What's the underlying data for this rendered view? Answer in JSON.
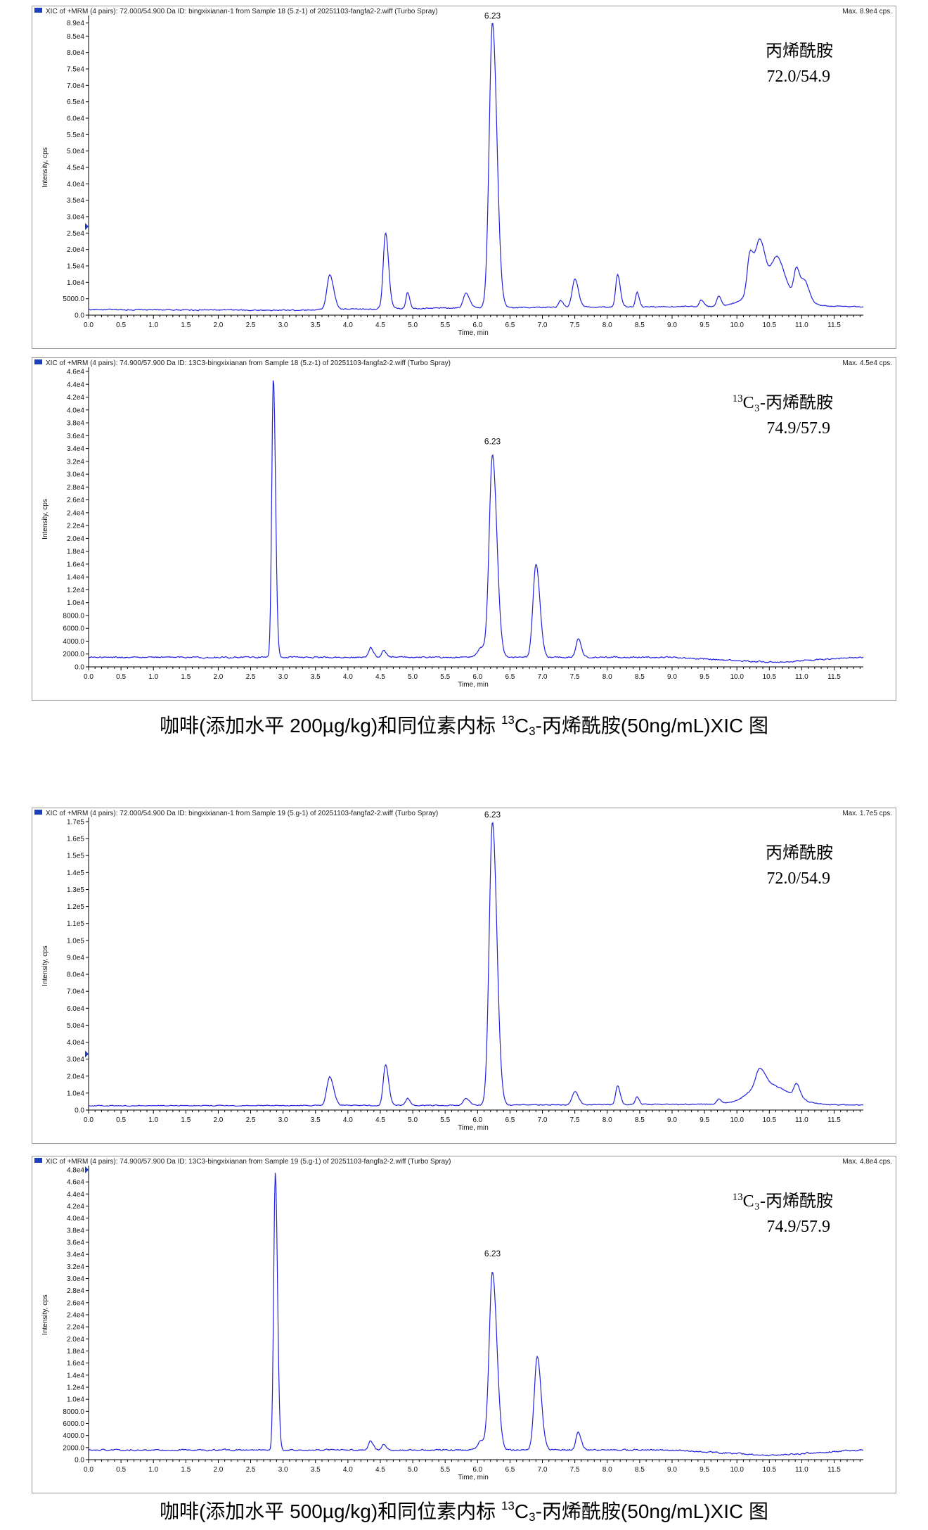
{
  "captions": [
    {
      "pre": "咖啡(添加水平 200µg/kg)和同位素内标 ",
      "sup": "13",
      "mid": "C",
      "sub": "3",
      "post": "-丙烯酰胺(50ng/mL)XIC 图"
    },
    {
      "pre": "咖啡(添加水平 500µg/kg)和同位素内标 ",
      "sup": "13",
      "mid": "C",
      "sub": "3",
      "post": "-丙烯酰胺(50ng/mL)XIC 图"
    }
  ],
  "colors": {
    "trace": "#2222dd",
    "marker": "#1a3fbf",
    "frame": "#9a9a9a"
  },
  "chart_data": [
    {
      "type": "line",
      "header": "XIC of +MRM (4 pairs): 72.000/54.900 Da ID: bingxixianan-1 from Sample 18 (5.z-1) of 20251103-fangfa2-2.wiff (Turbo Spray)",
      "max_label": "Max. 8.9e4 cps.",
      "xlabel": "Time, min",
      "ylabel": "Intensity, cps",
      "xlim": [
        0.0,
        11.95
      ],
      "x_ticks": [
        "0.0",
        "0.5",
        "1.0",
        "1.5",
        "2.0",
        "2.5",
        "3.0",
        "3.5",
        "4.0",
        "4.5",
        "5.0",
        "5.5",
        "6.0",
        "6.5",
        "7.0",
        "7.5",
        "8.0",
        "8.5",
        "9.0",
        "9.5",
        "10.0",
        "10.5",
        "11.0",
        "11.5"
      ],
      "ylim": [
        0,
        90000
      ],
      "y_ticks": [
        "0.0",
        "5000.0",
        "1.0e4",
        "1.5e4",
        "2.0e4",
        "2.5e4",
        "3.0e4",
        "3.5e4",
        "4.0e4",
        "4.5e4",
        "5.0e4",
        "5.5e4",
        "6.0e4",
        "6.5e4",
        "7.0e4",
        "7.5e4",
        "8.0e4",
        "8.5e4",
        "8.9e4"
      ],
      "y_tick_values": [
        0,
        5000,
        10000,
        15000,
        20000,
        25000,
        30000,
        35000,
        40000,
        45000,
        50000,
        55000,
        60000,
        65000,
        70000,
        75000,
        80000,
        85000,
        89000
      ],
      "marker_y": 27000,
      "peak_label": {
        "text": "6.23",
        "x": 6.23,
        "y": 89000
      },
      "annotation": {
        "sup": "",
        "line1": "丙烯酰胺",
        "line2": "72.0/54.9"
      },
      "baseline": [
        [
          0,
          1700
        ],
        [
          3.0,
          1500
        ],
        [
          5.5,
          2200
        ],
        [
          10.0,
          2700
        ],
        [
          11.95,
          2600
        ]
      ],
      "noise": 350,
      "peaks": [
        {
          "x": 3.72,
          "y": 10500,
          "w": 0.045
        },
        {
          "x": 4.58,
          "y": 23000,
          "w": 0.035
        },
        {
          "x": 4.92,
          "y": 5000,
          "w": 0.025
        },
        {
          "x": 5.82,
          "y": 4500,
          "w": 0.04
        },
        {
          "x": 6.23,
          "y": 87000,
          "w": 0.05
        },
        {
          "x": 7.28,
          "y": 2000,
          "w": 0.03
        },
        {
          "x": 7.5,
          "y": 8500,
          "w": 0.04
        },
        {
          "x": 8.16,
          "y": 10000,
          "w": 0.03
        },
        {
          "x": 8.46,
          "y": 4500,
          "w": 0.025
        },
        {
          "x": 9.45,
          "y": 2000,
          "w": 0.03
        },
        {
          "x": 9.72,
          "y": 3000,
          "w": 0.03
        },
        {
          "x": 10.2,
          "y": 12000,
          "w": 0.04
        },
        {
          "x": 10.35,
          "y": 14000,
          "w": 0.06
        },
        {
          "x": 10.62,
          "y": 9000,
          "w": 0.08
        },
        {
          "x": 10.92,
          "y": 9000,
          "w": 0.04
        },
        {
          "x": 11.05,
          "y": 6000,
          "w": 0.05
        },
        {
          "x": 10.45,
          "y": 7000,
          "w": 0.25
        }
      ]
    },
    {
      "type": "line",
      "header": "XIC of +MRM (4 pairs): 74.900/57.900 Da ID: 13C3-bingxixianan from Sample 18 (5.z-1) of 20251103-fangfa2-2.wiff (Turbo Spray)",
      "max_label": "Max. 4.5e4 cps.",
      "xlabel": "Time, min",
      "ylabel": "Intensity, cps",
      "xlim": [
        0.0,
        11.95
      ],
      "x_ticks": [
        "0.0",
        "0.5",
        "1.0",
        "1.5",
        "2.0",
        "2.5",
        "3.0",
        "3.5",
        "4.0",
        "4.5",
        "5.0",
        "5.5",
        "6.0",
        "6.5",
        "7.0",
        "7.5",
        "8.0",
        "8.5",
        "9.0",
        "9.5",
        "10.0",
        "10.5",
        "11.0",
        "11.5"
      ],
      "ylim": [
        0,
        46000
      ],
      "y_ticks": [
        "0.0",
        "2000.0",
        "4000.0",
        "6000.0",
        "8000.0",
        "1.0e4",
        "1.2e4",
        "1.4e4",
        "1.6e4",
        "1.8e4",
        "2.0e4",
        "2.2e4",
        "2.4e4",
        "2.6e4",
        "2.8e4",
        "3.0e4",
        "3.2e4",
        "3.4e4",
        "3.6e4",
        "3.8e4",
        "4.0e4",
        "4.2e4",
        "4.4e4",
        "4.6e4"
      ],
      "y_tick_values": [
        0,
        2000,
        4000,
        6000,
        8000,
        10000,
        12000,
        14000,
        16000,
        18000,
        20000,
        22000,
        24000,
        26000,
        28000,
        30000,
        32000,
        34000,
        36000,
        38000,
        40000,
        42000,
        44000,
        46000
      ],
      "marker_y": null,
      "peak_label": {
        "text": "6.23",
        "x": 6.23,
        "y": 34000
      },
      "annotation": {
        "sup": "13",
        "line1": "C₃-丙烯酰胺",
        "line2": "74.9/57.9"
      },
      "baseline": [
        [
          0,
          1500
        ],
        [
          9.0,
          1500
        ],
        [
          10.5,
          700
        ],
        [
          11.95,
          1500
        ]
      ],
      "noise": 220,
      "peaks": [
        {
          "x": 2.85,
          "y": 43500,
          "w": 0.025
        },
        {
          "x": 4.35,
          "y": 1500,
          "w": 0.03
        },
        {
          "x": 4.55,
          "y": 1000,
          "w": 0.03
        },
        {
          "x": 6.05,
          "y": 1500,
          "w": 0.05
        },
        {
          "x": 6.23,
          "y": 31500,
          "w": 0.05
        },
        {
          "x": 6.9,
          "y": 14500,
          "w": 0.045
        },
        {
          "x": 7.55,
          "y": 2800,
          "w": 0.035
        }
      ]
    },
    {
      "type": "line",
      "header": "XIC of +MRM (4 pairs): 72.000/54.900 Da ID: bingxixianan-1 from Sample 19 (5.g-1) of 20251103-fangfa2-2.wiff (Turbo Spray)",
      "max_label": "Max. 1.7e5 cps.",
      "xlabel": "Time, min",
      "ylabel": "Intensity, cps",
      "xlim": [
        0.0,
        11.95
      ],
      "x_ticks": [
        "0.0",
        "0.5",
        "1.0",
        "1.5",
        "2.0",
        "2.5",
        "3.0",
        "3.5",
        "4.0",
        "4.5",
        "5.0",
        "5.5",
        "6.0",
        "6.5",
        "7.0",
        "7.5",
        "8.0",
        "8.5",
        "9.0",
        "9.5",
        "10.0",
        "10.5",
        "11.0",
        "11.5"
      ],
      "ylim": [
        0,
        170000
      ],
      "y_ticks": [
        "0.0",
        "1.0e4",
        "2.0e4",
        "3.0e4",
        "4.0e4",
        "5.0e4",
        "6.0e4",
        "7.0e4",
        "8.0e4",
        "9.0e4",
        "1.0e5",
        "1.1e5",
        "1.2e5",
        "1.3e5",
        "1.4e5",
        "1.5e5",
        "1.6e5",
        "1.7e5"
      ],
      "y_tick_values": [
        0,
        10000,
        20000,
        30000,
        40000,
        50000,
        60000,
        70000,
        80000,
        90000,
        100000,
        110000,
        120000,
        130000,
        140000,
        150000,
        160000,
        170000
      ],
      "marker_y": 33000,
      "peak_label": {
        "text": "6.23",
        "x": 6.23,
        "y": 170000
      },
      "annotation": {
        "sup": "",
        "line1": "丙烯酰胺",
        "line2": "72.0/54.9"
      },
      "baseline": [
        [
          0,
          2500
        ],
        [
          5.5,
          2800
        ],
        [
          10.0,
          3500
        ],
        [
          11.95,
          3000
        ]
      ],
      "noise": 500,
      "peaks": [
        {
          "x": 3.72,
          "y": 17000,
          "w": 0.045
        },
        {
          "x": 4.58,
          "y": 24000,
          "w": 0.035
        },
        {
          "x": 4.92,
          "y": 4000,
          "w": 0.03
        },
        {
          "x": 5.82,
          "y": 4000,
          "w": 0.04
        },
        {
          "x": 6.23,
          "y": 167000,
          "w": 0.05
        },
        {
          "x": 7.5,
          "y": 8000,
          "w": 0.04
        },
        {
          "x": 8.16,
          "y": 11000,
          "w": 0.03
        },
        {
          "x": 8.46,
          "y": 4500,
          "w": 0.025
        },
        {
          "x": 9.72,
          "y": 3000,
          "w": 0.03
        },
        {
          "x": 10.35,
          "y": 10000,
          "w": 0.06
        },
        {
          "x": 10.45,
          "y": 12000,
          "w": 0.25
        },
        {
          "x": 10.92,
          "y": 8000,
          "w": 0.04
        }
      ]
    },
    {
      "type": "line",
      "header": "XIC of +MRM (4 pairs): 74.900/57.900 Da ID: 13C3-bingxixianan from Sample 19 (5.g-1) of 20251103-fangfa2-2.wiff (Turbo Spray)",
      "max_label": "Max. 4.8e4 cps.",
      "xlabel": "Time, min",
      "ylabel": "Intensity, cps",
      "xlim": [
        0.0,
        11.95
      ],
      "x_ticks": [
        "0.0",
        "0.5",
        "1.0",
        "1.5",
        "2.0",
        "2.5",
        "3.0",
        "3.5",
        "4.0",
        "4.5",
        "5.0",
        "5.5",
        "6.0",
        "6.5",
        "7.0",
        "7.5",
        "8.0",
        "8.5",
        "9.0",
        "9.5",
        "10.0",
        "10.5",
        "11.0",
        "11.5"
      ],
      "ylim": [
        0,
        48000
      ],
      "y_ticks": [
        "0.0",
        "2000.0",
        "4000.0",
        "6000.0",
        "8000.0",
        "1.0e4",
        "1.2e4",
        "1.4e4",
        "1.6e4",
        "1.8e4",
        "2.0e4",
        "2.2e4",
        "2.4e4",
        "2.6e4",
        "2.8e4",
        "3.0e4",
        "3.2e4",
        "3.4e4",
        "3.6e4",
        "3.8e4",
        "4.0e4",
        "4.2e4",
        "4.4e4",
        "4.6e4",
        "4.8e4"
      ],
      "y_tick_values": [
        0,
        2000,
        4000,
        6000,
        8000,
        10000,
        12000,
        14000,
        16000,
        18000,
        20000,
        22000,
        24000,
        26000,
        28000,
        30000,
        32000,
        34000,
        36000,
        38000,
        40000,
        42000,
        44000,
        46000,
        48000
      ],
      "marker_y": 48000,
      "peak_label": {
        "text": "6.23",
        "x": 6.23,
        "y": 33000
      },
      "annotation": {
        "sup": "13",
        "line1": "C₃-丙烯酰胺",
        "line2": "74.9/57.9"
      },
      "baseline": [
        [
          0,
          1600
        ],
        [
          9.0,
          1600
        ],
        [
          10.5,
          700
        ],
        [
          11.95,
          1600
        ]
      ],
      "noise": 230,
      "peaks": [
        {
          "x": 2.88,
          "y": 46000,
          "w": 0.025
        },
        {
          "x": 4.35,
          "y": 1500,
          "w": 0.03
        },
        {
          "x": 4.55,
          "y": 1000,
          "w": 0.03
        },
        {
          "x": 6.05,
          "y": 1500,
          "w": 0.05
        },
        {
          "x": 6.23,
          "y": 29500,
          "w": 0.05
        },
        {
          "x": 6.92,
          "y": 15500,
          "w": 0.045
        },
        {
          "x": 7.55,
          "y": 3000,
          "w": 0.035
        }
      ]
    }
  ]
}
